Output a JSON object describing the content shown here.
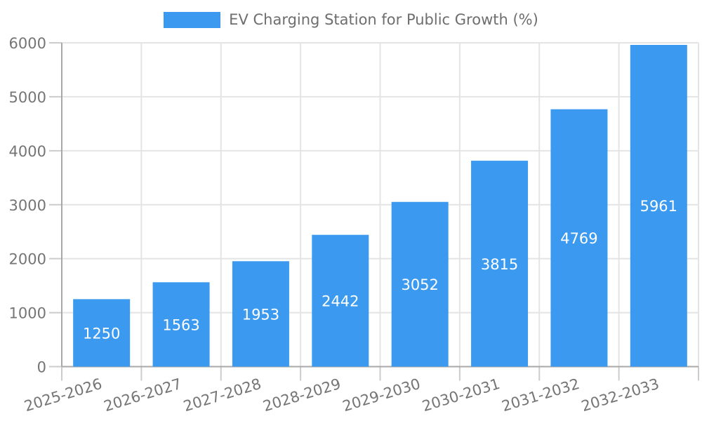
{
  "chart_data": {
    "type": "bar",
    "title": "EV Charging Station for Public Growth (%)",
    "series_name": "EV Charging Station for Public Growth (%)",
    "categories": [
      "2025-2026",
      "2026-2027",
      "2027-2028",
      "2028-2029",
      "2029-2030",
      "2030-2031",
      "2031-2032",
      "2032-2033"
    ],
    "values": [
      1250,
      1563,
      1953,
      2442,
      3052,
      3815,
      4769,
      5961
    ],
    "bar_value_labels": [
      "1250",
      "1563",
      "1953",
      "2442",
      "3052",
      "3815",
      "4769",
      "5961"
    ],
    "xlabel": "",
    "ylabel": "",
    "ylim": [
      0,
      6000
    ],
    "yticks": [
      0,
      1000,
      2000,
      3000,
      4000,
      5000,
      6000
    ],
    "ytick_labels": [
      "0",
      "1000",
      "2000",
      "3000",
      "4000",
      "5000",
      "6000"
    ],
    "grid": true,
    "legend_position": "top",
    "x_label_rotation_deg": -17
  },
  "colors": {
    "bar": "#3b9aef",
    "grid": "#e4e4e4",
    "axis": "#a8a8a8",
    "tick": "#cccccc",
    "tick_label": "#757575",
    "title": "#6e6e6e",
    "bar_label": "#ffffff",
    "background": "#ffffff"
  }
}
